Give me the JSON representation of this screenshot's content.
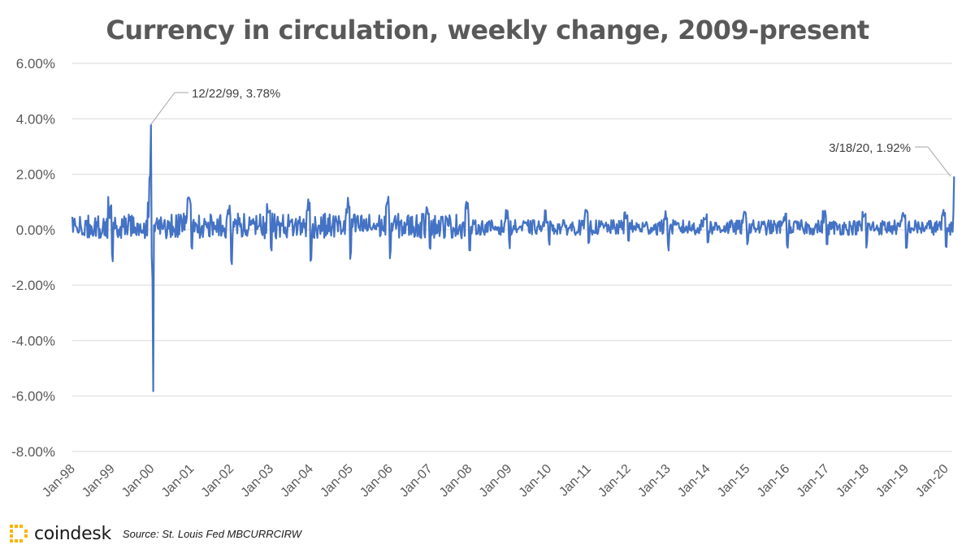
{
  "chart_data": {
    "type": "line",
    "title": "Currency in circulation, weekly change, 2009-present",
    "xlabel": "",
    "ylabel": "",
    "ylim": [
      -0.08,
      0.06
    ],
    "y_ticks": [
      "6.00%",
      "4.00%",
      "2.00%",
      "0.00%",
      "-2.00%",
      "-4.00%",
      "-6.00%",
      "-8.00%"
    ],
    "x_ticks": [
      "Jan-98",
      "Jan-99",
      "Jan-00",
      "Jan-01",
      "Jan-02",
      "Jan-03",
      "Jan-04",
      "Jan-05",
      "Jan-06",
      "Jan-07",
      "Jan-08",
      "Jan-09",
      "Jan-10",
      "Jan-11",
      "Jan-12",
      "Jan-13",
      "Jan-14",
      "Jan-15",
      "Jan-16",
      "Jan-17",
      "Jan-18",
      "Jan-19",
      "Jan-20"
    ],
    "x_range": [
      "1998-01",
      "2020-03"
    ],
    "grid": "horizontal",
    "legend": "none",
    "series": [
      {
        "color": "#4472C4",
        "values_note": "weekly percent change, approx 1160 weekly observations, approximated",
        "key_points": [
          {
            "date": "1999-12-08",
            "value": 0.0185
          },
          {
            "date": "1999-12-15",
            "value": 0.0198
          },
          {
            "date": "1999-12-22",
            "value": 0.0378
          },
          {
            "date": "2000-01-05",
            "value": -0.018
          },
          {
            "date": "2000-01-12",
            "value": -0.0582
          },
          {
            "date": "2020-03-11",
            "value": 0.0058
          },
          {
            "date": "2020-03-18",
            "value": 0.0192
          }
        ]
      }
    ],
    "annotations": [
      {
        "label": "12/22/99, 3.78%"
      },
      {
        "label": "3/18/20, 1.92%"
      }
    ]
  },
  "footer": {
    "brand": "coindesk",
    "source": "Source: St. Louis Fed MBCURRCIRW"
  }
}
